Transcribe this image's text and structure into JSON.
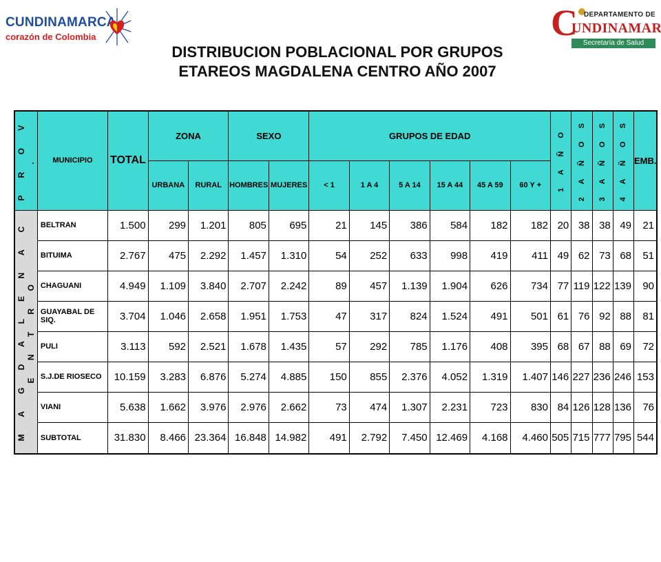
{
  "logos": {
    "left_line1": "CUNDINAMARCA",
    "left_line2": "corazón de Colombia",
    "right_big": "C",
    "right_dep": "DEPARTAMENTO DE",
    "right_name": "UNDINAMARCA",
    "right_sub": "Secretaría de Salud"
  },
  "title": {
    "line1": "DISTRIBUCION POBLACIONAL POR GRUPOS",
    "line2": "ETAREOS MAGDALENA CENTRO AÑO 2007"
  },
  "table": {
    "head": {
      "prov": "P R O V .",
      "municipio": "MUNICIPIO",
      "total": "TOTAL",
      "zona": "ZONA",
      "sexo": "SEXO",
      "grupos": "GRUPOS DE EDAD",
      "anio1": "1 A Ñ O",
      "anio2": "2 A Ñ O S",
      "anio3": "3 A Ñ O S",
      "anio4": "4 A Ñ O S",
      "emb": "EMB.",
      "urbana": "URBANA",
      "rural": "RURAL",
      "hombres": "HOMBRES",
      "mujeres": "MUJERES",
      "g1": "< 1",
      "g2": "1 A 4",
      "g3": "5 A 14",
      "g4": "15 A 44",
      "g5": "45 A 59",
      "g6": "60 Y +"
    },
    "prov_body": "M A G D A L E N A   C E N T R O",
    "rows": [
      {
        "name": "BELTRAN",
        "v": [
          "1.500",
          "299",
          "1.201",
          "805",
          "695",
          "21",
          "145",
          "386",
          "584",
          "182",
          "182",
          "20",
          "38",
          "38",
          "49",
          "21"
        ]
      },
      {
        "name": "BITUIMA",
        "v": [
          "2.767",
          "475",
          "2.292",
          "1.457",
          "1.310",
          "54",
          "252",
          "633",
          "998",
          "419",
          "411",
          "49",
          "62",
          "73",
          "68",
          "51"
        ]
      },
      {
        "name": "CHAGUANI",
        "v": [
          "4.949",
          "1.109",
          "3.840",
          "2.707",
          "2.242",
          "89",
          "457",
          "1.139",
          "1.904",
          "626",
          "734",
          "77",
          "119",
          "122",
          "139",
          "90"
        ]
      },
      {
        "name": "GUAYABAL DE SIQ.",
        "v": [
          "3.704",
          "1.046",
          "2.658",
          "1.951",
          "1.753",
          "47",
          "317",
          "824",
          "1.524",
          "491",
          "501",
          "61",
          "76",
          "92",
          "88",
          "81"
        ]
      },
      {
        "name": "PULI",
        "v": [
          "3.113",
          "592",
          "2.521",
          "1.678",
          "1.435",
          "57",
          "292",
          "785",
          "1.176",
          "408",
          "395",
          "68",
          "67",
          "88",
          "69",
          "72"
        ]
      },
      {
        "name": "S.J.DE RIOSECO",
        "v": [
          "10.159",
          "3.283",
          "6.876",
          "5.274",
          "4.885",
          "150",
          "855",
          "2.376",
          "4.052",
          "1.319",
          "1.407",
          "146",
          "227",
          "236",
          "246",
          "153"
        ]
      },
      {
        "name": "VIANI",
        "v": [
          "5.638",
          "1.662",
          "3.976",
          "2.976",
          "2.662",
          "73",
          "474",
          "1.307",
          "2.231",
          "723",
          "830",
          "84",
          "126",
          "128",
          "136",
          "76"
        ]
      }
    ],
    "subtotal": {
      "name": "SUBTOTAL",
      "v": [
        "31.830",
        "8.466",
        "23.364",
        "16.848",
        "14.982",
        "491",
        "2.792",
        "7.450",
        "12.469",
        "4.168",
        "4.460",
        "505",
        "715",
        "777",
        "795",
        "544"
      ]
    }
  }
}
